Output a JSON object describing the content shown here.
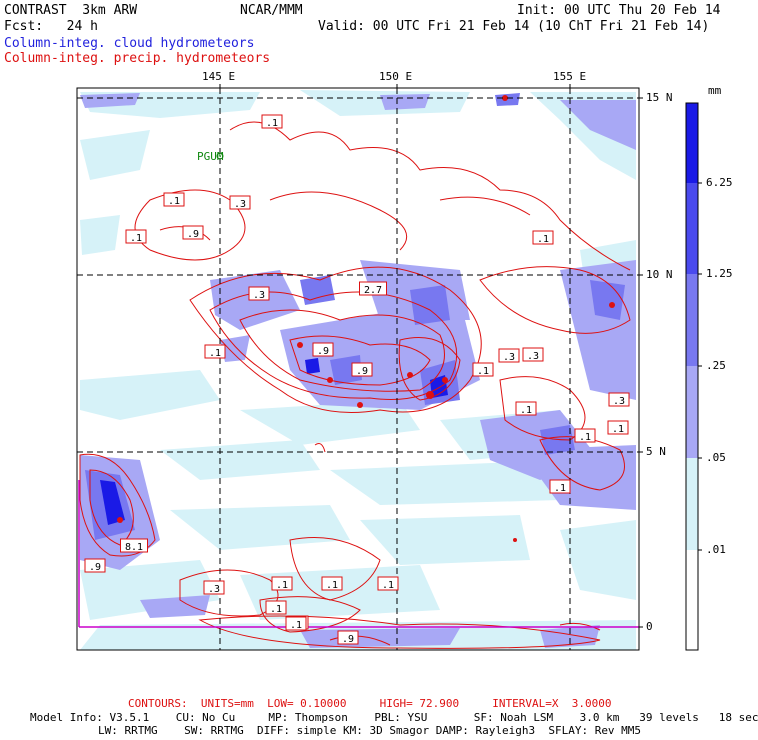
{
  "header": {
    "model": "CONTRAST  3km ARW",
    "org": "NCAR/MMM",
    "init": "Init: 00 UTC Thu 20 Feb 14",
    "fcst": "Fcst:   24 h",
    "valid": "Valid: 00 UTC Fri 21 Feb 14 (10 ChT Fri 21 Feb 14)",
    "field_cloud": "Column-integ. cloud hydrometeors",
    "field_precip": "Column-integ. precip. hydrometeors"
  },
  "map": {
    "lon_labels": [
      "145 E",
      "150 E",
      "155 E"
    ],
    "lat_labels": [
      "15 N",
      "10 N",
      "5 N",
      "0"
    ],
    "station": "PGUM",
    "contour_labels": [
      ".1",
      ".1",
      ".3",
      ".1",
      ".9",
      ".3",
      "2.7",
      ".1",
      ".9",
      ".9",
      ".1",
      ".1",
      ".3",
      ".3",
      ".1",
      ".1",
      ".3",
      ".1",
      ".1",
      ".1",
      "8.1",
      ".9",
      ".3",
      ".1",
      ".1",
      ".1",
      ".1",
      ".1",
      ".9",
      ".1"
    ]
  },
  "colorbar": {
    "unit": "mm",
    "labels": [
      "6.25",
      "1.25",
      ".25",
      ".05",
      ".01"
    ],
    "colors": [
      "#1a1ae6",
      "#4a4aee",
      "#7878f0",
      "#a8a8f5",
      "#d6f2f8",
      "#ffffff"
    ]
  },
  "footer": {
    "contours": "CONTOURS:  UNITS=mm  LOW= 0.10000     HIGH= 72.900     INTERVAL=X  3.0000",
    "model_info_1": "Model Info: V3.5.1    CU: No Cu     MP: Thompson    PBL: YSU       SF: Noah LSM    3.0 km   39 levels   18 sec",
    "model_info_2": "LW: RRTMG    SW: RRTMG  DIFF: simple KM: 3D Smagor DAMP: Rayleigh3  SFLAY: Rev MM5"
  }
}
